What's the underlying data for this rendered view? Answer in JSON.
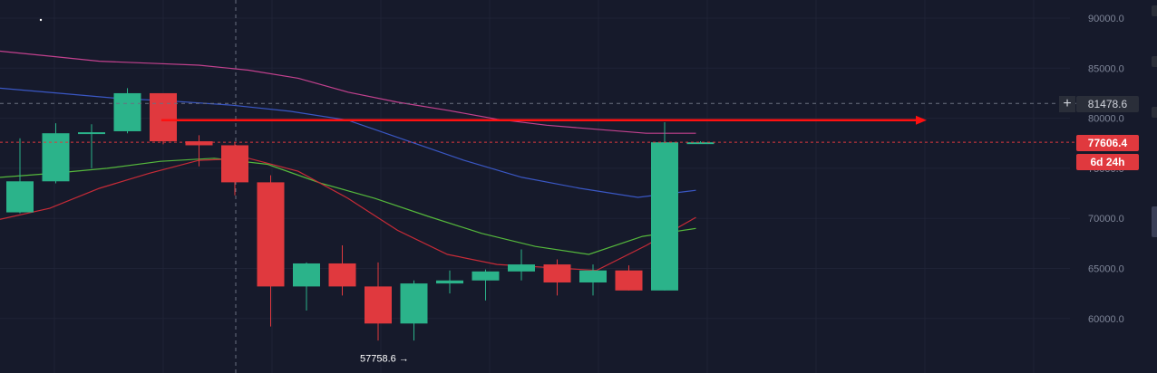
{
  "colors": {
    "background": "#161a2b",
    "grid": "#1f2336",
    "axis_text": "#7f8699",
    "bull": "#26a69a",
    "bull_body": "#2bb38a",
    "bear": "#e0393e",
    "ma_pink": "#c2418e",
    "ma_blue": "#3a57c4",
    "ma_green": "#55b83c",
    "ma_red": "#c72b37",
    "arrow": "#ff1010",
    "label_text": "#ffffff"
  },
  "axis": {
    "ticks": [
      "90000.0",
      "85000.0",
      "80000.0",
      "75000.0",
      "70000.0",
      "65000.0",
      "60000.0"
    ]
  },
  "price_labels": {
    "crosshair_price": "81478.6",
    "last_price": "77606.4",
    "countdown": "6d 24h"
  },
  "annotations": {
    "low_label": "57758.6 →"
  },
  "chart_data": {
    "type": "candlestick",
    "ylim": [
      56000,
      92000
    ],
    "yticks": [
      60000,
      65000,
      70000,
      75000,
      80000,
      85000,
      90000
    ],
    "candles": [
      {
        "o": 70600,
        "h": 78000,
        "l": 70500,
        "c": 73700
      },
      {
        "o": 73700,
        "h": 79500,
        "l": 73500,
        "c": 78500
      },
      {
        "o": 78500,
        "h": 79400,
        "l": 75000,
        "c": 78600
      },
      {
        "o": 78700,
        "h": 83000,
        "l": 78500,
        "c": 82500
      },
      {
        "o": 82500,
        "h": 82500,
        "l": 77400,
        "c": 77700
      },
      {
        "o": 77700,
        "h": 78300,
        "l": 75200,
        "c": 77300
      },
      {
        "o": 77300,
        "h": 77600,
        "l": 72300,
        "c": 73600
      },
      {
        "o": 73600,
        "h": 74300,
        "l": 59200,
        "c": 63200
      },
      {
        "o": 63200,
        "h": 65600,
        "l": 60800,
        "c": 65500
      },
      {
        "o": 65500,
        "h": 67300,
        "l": 62300,
        "c": 63200
      },
      {
        "o": 63200,
        "h": 65600,
        "l": 57800,
        "c": 59500
      },
      {
        "o": 59500,
        "h": 63800,
        "l": 57800,
        "c": 63500
      },
      {
        "o": 63500,
        "h": 64800,
        "l": 62500,
        "c": 63800
      },
      {
        "o": 63800,
        "h": 64900,
        "l": 61800,
        "c": 64700
      },
      {
        "o": 64700,
        "h": 66900,
        "l": 63800,
        "c": 65400
      },
      {
        "o": 65400,
        "h": 65900,
        "l": 62300,
        "c": 63600
      },
      {
        "o": 63600,
        "h": 65400,
        "l": 62300,
        "c": 64800
      },
      {
        "o": 64800,
        "h": 65300,
        "l": 62800,
        "c": 62800
      },
      {
        "o": 62800,
        "h": 79600,
        "l": 62800,
        "c": 77600
      },
      {
        "o": 77600,
        "h": 77700,
        "l": 77500,
        "c": 77600
      }
    ],
    "ma_lines": [
      {
        "color": "ma_pink",
        "values": [
          86700,
          86200,
          85700,
          85500,
          85300,
          84800,
          84000,
          82600,
          81600,
          80800,
          79900,
          79300,
          78900,
          78500,
          78500
        ]
      },
      {
        "color": "ma_blue",
        "values": [
          83000,
          82500,
          82000,
          81700,
          81300,
          80700,
          79800,
          77800,
          75800,
          74100,
          73000,
          72100,
          72800
        ]
      },
      {
        "color": "ma_green",
        "values": [
          74100,
          74500,
          75000,
          75700,
          76000,
          75400,
          73500,
          72000,
          70200,
          68500,
          67200,
          66400,
          68200,
          69000
        ]
      },
      {
        "color": "ma_red",
        "values": [
          69900,
          71000,
          73000,
          74500,
          75800,
          76000,
          74700,
          72000,
          68800,
          66400,
          65400,
          65100,
          64800,
          67300,
          70100
        ]
      }
    ],
    "arrow_level": 79800,
    "crosshair_level": 81478.6,
    "last_level": 77606.4,
    "low_value": 57758.6
  }
}
